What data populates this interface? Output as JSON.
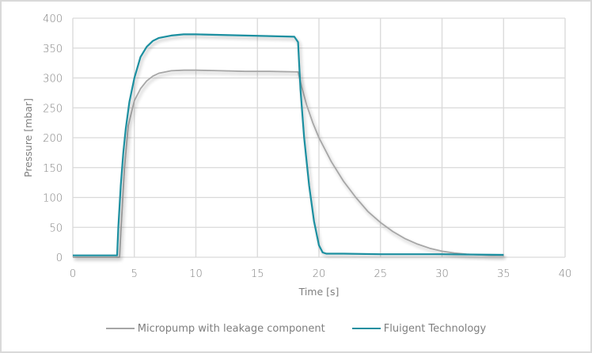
{
  "chart_data": {
    "type": "line",
    "title": "",
    "xlabel": "Time [s]",
    "ylabel": "Pressure [mbar]",
    "xlim": [
      0,
      40
    ],
    "ylim": [
      0,
      400
    ],
    "x_ticks": [
      0,
      5,
      10,
      15,
      20,
      25,
      30,
      35,
      40
    ],
    "y_ticks": [
      0,
      50,
      100,
      150,
      200,
      250,
      300,
      350,
      400
    ],
    "grid": true,
    "legend_position": "bottom",
    "series": [
      {
        "name": "Micropump with leakage component",
        "color": "#a6a6a6",
        "x": [
          0,
          3.8,
          3.9,
          4.2,
          4.5,
          5.0,
          5.5,
          6.0,
          6.5,
          7.0,
          8.0,
          9.0,
          10.0,
          12.0,
          14.0,
          16.0,
          18.3,
          18.6,
          19.0,
          19.5,
          20.0,
          21.0,
          22.0,
          23.0,
          24.0,
          25.0,
          26.0,
          27.0,
          28.0,
          29.0,
          30.0,
          31.0,
          32.0,
          33.0,
          34.0,
          35.0
        ],
        "y": [
          0,
          0,
          40,
          150,
          220,
          262,
          282,
          295,
          303,
          308,
          312,
          313,
          313,
          312,
          311,
          311,
          310,
          285,
          255,
          225,
          200,
          160,
          127,
          100,
          76,
          58,
          43,
          31,
          22,
          15,
          10,
          7,
          5,
          4,
          3,
          3
        ]
      },
      {
        "name": "Fluigent Technology",
        "color": "#1a8fa0",
        "x": [
          0,
          3.6,
          3.7,
          3.9,
          4.1,
          4.3,
          4.6,
          5.0,
          5.5,
          6.0,
          6.5,
          7.0,
          8.0,
          9.0,
          10.0,
          12.0,
          14.0,
          16.0,
          18.0,
          18.3,
          18.5,
          18.8,
          19.2,
          19.6,
          20.0,
          20.3,
          20.6,
          22.0,
          25.0,
          30.0,
          35.0
        ],
        "y": [
          3,
          3,
          50,
          120,
          175,
          215,
          260,
          300,
          335,
          352,
          362,
          367,
          371,
          373,
          373,
          372,
          371,
          370,
          369,
          360,
          280,
          200,
          120,
          60,
          20,
          8,
          6,
          6,
          5,
          5,
          4
        ]
      }
    ]
  },
  "axes": {
    "x_title": "Time [s]",
    "y_title": "Pressure [mbar]",
    "x_tick_labels": [
      "0",
      "5",
      "10",
      "15",
      "20",
      "25",
      "30",
      "35",
      "40"
    ],
    "y_tick_labels": [
      "0",
      "50",
      "100",
      "150",
      "200",
      "250",
      "300",
      "350",
      "400"
    ]
  },
  "legend": {
    "items": [
      {
        "label": "Micropump with leakage component",
        "color": "#a6a6a6"
      },
      {
        "label": "Fluigent Technology",
        "color": "#1a8fa0"
      }
    ]
  }
}
